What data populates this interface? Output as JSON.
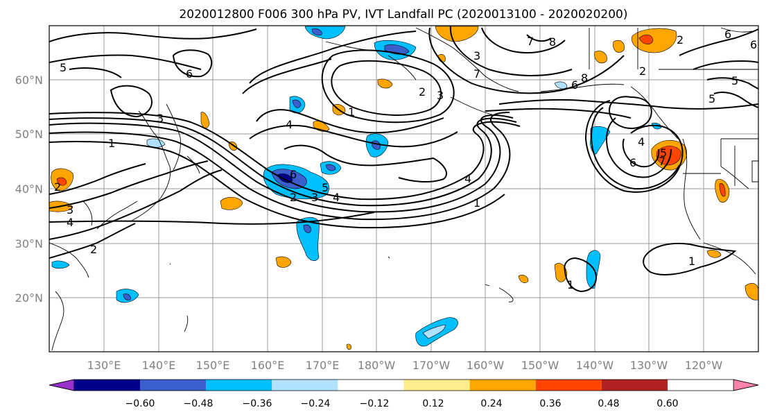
{
  "title": "2020012800 F006 300 hPa PV, IVT Landfall PC (2020013100 - 2020020200)",
  "lat_labels": [
    "60°N",
    "50°N",
    "40°N",
    "30°N",
    "20°N"
  ],
  "lon_labels": [
    "130°E",
    "140°E",
    "150°E",
    "160°E",
    "170°E",
    "180°W",
    "170°W",
    "160°W",
    "150°W",
    "140°W",
    "130°W",
    "120°W"
  ],
  "colorbar": {
    "colors": [
      "#9932cc",
      "#00008b",
      "#3a5fcd",
      "#00bfff",
      "#b0e2ff",
      "#ffffff",
      "#ffec8b",
      "#ffa500",
      "#ff4500",
      "#b22222",
      "#ff82ab"
    ],
    "tick_labels": [
      "−0.60",
      "−0.48",
      "−0.36",
      "−0.24",
      "−0.12",
      "0.12",
      "0.24",
      "0.36",
      "0.48",
      "0.60"
    ]
  },
  "contour_labels": [
    "5",
    "6",
    "3",
    "1",
    "4",
    "2",
    "1",
    "6",
    "5",
    "3",
    "4",
    "2",
    "3",
    "4",
    "2",
    "2",
    "1",
    "4",
    "6",
    "3",
    "7",
    "8",
    "3",
    "7",
    "8",
    "6",
    "7",
    "5",
    "4",
    "6",
    "6",
    "2",
    "2",
    "5",
    "5",
    "1",
    "1",
    "4"
  ],
  "features": {
    "pv_field": "300 hPa PV contours",
    "ivt_field": "IVT Landfall PC shading"
  }
}
